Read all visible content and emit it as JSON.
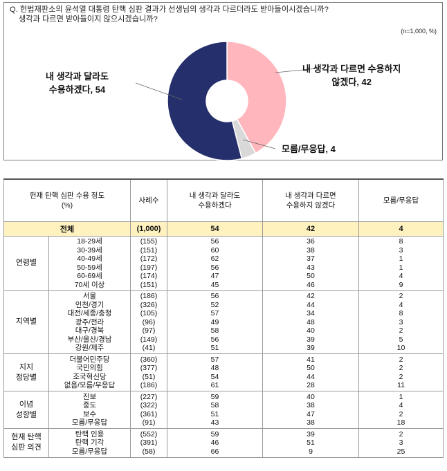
{
  "question": {
    "line1": "Q. 헌법재판소의 윤석열 대통령 탄핵 심판 결과가 선생님의 생각과 다르더라도 받아들이시겠습니까?",
    "line2": "생각과 다르면 받아들이지 않으시겠습니까?",
    "unit_note": "(n=1,000,  %)"
  },
  "chart_data": {
    "type": "pie",
    "donut": true,
    "slices": [
      {
        "label": "내 생각과 다르면 수용하지 않겠다",
        "value": 42,
        "color": "#ffb6bd"
      },
      {
        "label": "모름/무응답",
        "value": 4,
        "color": "#d9d9d9"
      },
      {
        "label": "내 생각과 달라도 수용하겠다",
        "value": 54,
        "color": "#252f6b"
      }
    ],
    "slice_labels": {
      "reject_line1": "내 생각과 다르면 수용하지",
      "reject_line2": "않겠다, 42",
      "dk": "모름/무응답, 4",
      "accept_line1": "내 생각과 달라도",
      "accept_line2": "수용하겠다, 54"
    }
  },
  "table": {
    "headers": {
      "category_line1": "헌재 탄핵 심판 수용 정도",
      "category_line2": "(%)",
      "n": "사례수",
      "accept_line1": "내 생각과 달라도",
      "accept_line2": "수용하겠다",
      "reject_line1": "내 생각과 다르면",
      "reject_line2": "수용하지 않겠다",
      "dk": "모름/무응답"
    },
    "total": {
      "label": "전체",
      "n": "(1,000)",
      "accept": "54",
      "reject": "42",
      "dk": "4"
    },
    "groups": [
      {
        "name_lines": [
          "연령별"
        ],
        "rows": [
          {
            "sub": "18-29세",
            "n": "(155)",
            "accept": "56",
            "reject": "36",
            "dk": "8"
          },
          {
            "sub": "30-39세",
            "n": "(151)",
            "accept": "60",
            "reject": "38",
            "dk": "3"
          },
          {
            "sub": "40-49세",
            "n": "(172)",
            "accept": "62",
            "reject": "37",
            "dk": "1"
          },
          {
            "sub": "50-59세",
            "n": "(197)",
            "accept": "56",
            "reject": "43",
            "dk": "1"
          },
          {
            "sub": "60-69세",
            "n": "(174)",
            "accept": "47",
            "reject": "50",
            "dk": "4"
          },
          {
            "sub": "70세 이상",
            "n": "(151)",
            "accept": "45",
            "reject": "46",
            "dk": "9"
          }
        ]
      },
      {
        "name_lines": [
          "지역별"
        ],
        "rows": [
          {
            "sub": "서울",
            "n": "(186)",
            "accept": "56",
            "reject": "42",
            "dk": "2"
          },
          {
            "sub": "인천/경기",
            "n": "(326)",
            "accept": "52",
            "reject": "44",
            "dk": "4"
          },
          {
            "sub": "대전/세종/충청",
            "n": "(105)",
            "accept": "57",
            "reject": "34",
            "dk": "8"
          },
          {
            "sub": "광주/전라",
            "n": "(96)",
            "accept": "49",
            "reject": "48",
            "dk": "3"
          },
          {
            "sub": "대구/경북",
            "n": "(97)",
            "accept": "58",
            "reject": "40",
            "dk": "2"
          },
          {
            "sub": "부산/울산/경남",
            "n": "(149)",
            "accept": "56",
            "reject": "39",
            "dk": "5"
          },
          {
            "sub": "강원/제주",
            "n": "(41)",
            "accept": "51",
            "reject": "39",
            "dk": "10"
          }
        ]
      },
      {
        "name_lines": [
          "지지",
          "정당별"
        ],
        "rows": [
          {
            "sub": "더불어민주당",
            "n": "(360)",
            "accept": "57",
            "reject": "41",
            "dk": "2"
          },
          {
            "sub": "국민의힘",
            "n": "(377)",
            "accept": "48",
            "reject": "50",
            "dk": "2"
          },
          {
            "sub": "조국혁신당",
            "n": "(51)",
            "accept": "54",
            "reject": "44",
            "dk": "2"
          },
          {
            "sub": "없음/모름/무응답",
            "n": "(186)",
            "accept": "61",
            "reject": "28",
            "dk": "11"
          }
        ]
      },
      {
        "name_lines": [
          "이념",
          "성향별"
        ],
        "rows": [
          {
            "sub": "진보",
            "n": "(227)",
            "accept": "59",
            "reject": "40",
            "dk": "1"
          },
          {
            "sub": "중도",
            "n": "(322)",
            "accept": "58",
            "reject": "38",
            "dk": "4"
          },
          {
            "sub": "보수",
            "n": "(361)",
            "accept": "51",
            "reject": "47",
            "dk": "2"
          },
          {
            "sub": "모름/무응답",
            "n": "(91)",
            "accept": "43",
            "reject": "38",
            "dk": "18"
          }
        ]
      },
      {
        "name_lines": [
          "현재 탄핵",
          "심판 의견"
        ],
        "rows": [
          {
            "sub": "탄핵 인용",
            "n": "(552)",
            "accept": "59",
            "reject": "39",
            "dk": "2"
          },
          {
            "sub": "탄핵 기각",
            "n": "(391)",
            "accept": "46",
            "reject": "51",
            "dk": "3"
          },
          {
            "sub": "모름/무응답",
            "n": "(58)",
            "accept": "66",
            "reject": "9",
            "dk": "25"
          }
        ]
      }
    ]
  }
}
